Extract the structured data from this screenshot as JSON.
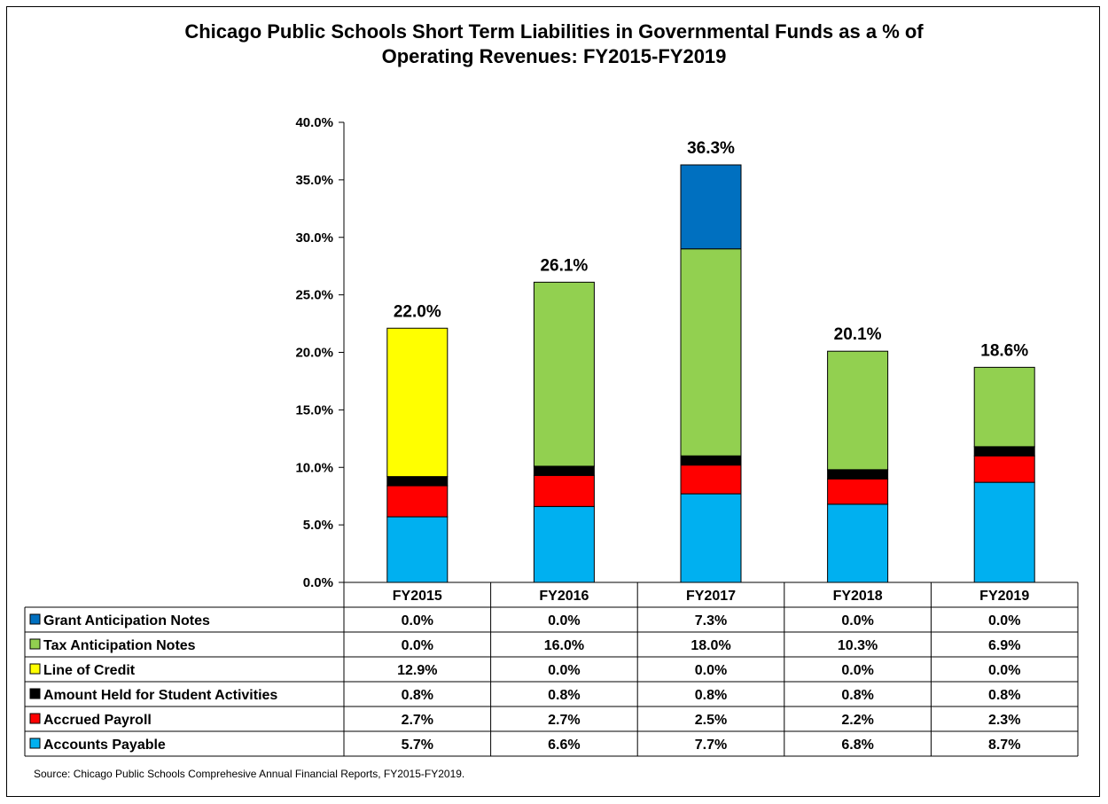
{
  "title_line1": "Chicago Public Schools Short Term Liabilities in Governmental Funds as a % of",
  "title_line2": "Operating Revenues: FY2015-FY2019",
  "source": "Source: Chicago Public Schools Comprehesive Annual Financial Reports, FY2015-FY2019.",
  "chart_data": {
    "type": "bar",
    "stacked": true,
    "categories": [
      "FY2015",
      "FY2016",
      "FY2017",
      "FY2018",
      "FY2019"
    ],
    "ylim": [
      0,
      40
    ],
    "yticks": [
      "0.0%",
      "5.0%",
      "10.0%",
      "15.0%",
      "20.0%",
      "25.0%",
      "30.0%",
      "35.0%",
      "40.0%"
    ],
    "totals": [
      "22.0%",
      "26.1%",
      "36.3%",
      "20.1%",
      "18.6%"
    ],
    "series": [
      {
        "name": "Accounts Payable",
        "color": "#00B0F0",
        "values": [
          5.7,
          6.6,
          7.7,
          6.8,
          8.7
        ],
        "labels": [
          "5.7%",
          "6.6%",
          "7.7%",
          "6.8%",
          "8.7%"
        ]
      },
      {
        "name": "Accrued Payroll",
        "color": "#FF0000",
        "values": [
          2.7,
          2.7,
          2.5,
          2.2,
          2.3
        ],
        "labels": [
          "2.7%",
          "2.7%",
          "2.5%",
          "2.2%",
          "2.3%"
        ]
      },
      {
        "name": "Amount Held for Student Activities",
        "color": "#000000",
        "values": [
          0.8,
          0.8,
          0.8,
          0.8,
          0.8
        ],
        "labels": [
          "0.8%",
          "0.8%",
          "0.8%",
          "0.8%",
          "0.8%"
        ]
      },
      {
        "name": "Line of Credit",
        "color": "#FFFF00",
        "values": [
          12.9,
          0.0,
          0.0,
          0.0,
          0.0
        ],
        "labels": [
          "12.9%",
          "0.0%",
          "0.0%",
          "0.0%",
          "0.0%"
        ]
      },
      {
        "name": "Tax Anticipation Notes",
        "color": "#92D050",
        "values": [
          0.0,
          16.0,
          18.0,
          10.3,
          6.9
        ],
        "labels": [
          "0.0%",
          "16.0%",
          "18.0%",
          "10.3%",
          "6.9%"
        ]
      },
      {
        "name": "Grant Anticipation Notes",
        "color": "#0070C0",
        "values": [
          0.0,
          0.0,
          7.3,
          0.0,
          0.0
        ],
        "labels": [
          "0.0%",
          "0.0%",
          "7.3%",
          "0.0%",
          "0.0%"
        ]
      }
    ]
  }
}
